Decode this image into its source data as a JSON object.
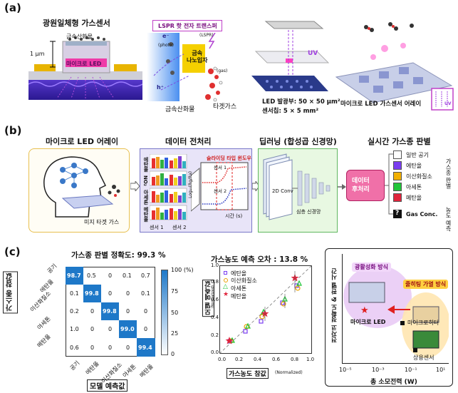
{
  "panel_a": {
    "label": "(a)",
    "title": "광원일체형 가스센서",
    "metal_oxide_top": "금속산화물",
    "thickness": "1 μm",
    "micro_led": "마이크로 LED",
    "lspr_title": "LSPR 핫 전자 트랜스퍼",
    "e_label": "e⁻",
    "h_label": "h⁺",
    "lspr_small": "(LSPR)",
    "photo_small": "(photo)",
    "gas_small": "(gas)",
    "metal_nano": "금속\n나노입자",
    "metal_oxide_bottom": "금속산화물",
    "target_gas": "타겟가스",
    "uv_label": "UV",
    "led_area": "LED 발광부: 50 × 50 μm²",
    "chip_area": "센서칩: 5 × 5 mm²",
    "array_label": "마이크로 LED 가스센서 어레이",
    "uv_small": "UV"
  },
  "panel_b": {
    "label": "(b)",
    "h1": "마이크로 LED 어레이",
    "h2": "데이터 전처리",
    "h3": "딥러닝 (합성곱 신경망)",
    "h4": "실시간 가스종 판별",
    "tiny_gas": "미지 타겟 가스",
    "row_labels": [
      "에탄올",
      "NO₂",
      "아세톤",
      "메탄올"
    ],
    "sensor1": "센서 1",
    "sensor2": "센서 2",
    "sliding": "슬라이딩 타입 윈도우",
    "inset_s1": "센서 1",
    "inset_s2": "센서 2",
    "inset_y": "Log₁₀(Rg/Ra)",
    "inset_x": "시간 (s)",
    "conv": "2D Conv",
    "deep_net": "심층 신경망",
    "post": "데이터\n후처리",
    "classes": [
      {
        "name": "일반 공기",
        "color": "#ffffff"
      },
      {
        "name": "에탄올",
        "color": "#7a3df0"
      },
      {
        "name": "이산화질소",
        "color": "#f2b000"
      },
      {
        "name": "아세톤",
        "color": "#22c53a"
      },
      {
        "name": "메탄올",
        "color": "#e0243c"
      }
    ],
    "gas_conc_mark": "?",
    "gas_conc": "Gas Conc.",
    "side_cls": "가스종 판별",
    "side_conc": "농도 예측"
  },
  "panel_c": {
    "label": "(c)",
    "cm_title": "가스종 판별 정확도: 99.3 %",
    "cm_rows": [
      "공기",
      "에탄올",
      "이산화질소",
      "아세톤",
      "메탄올"
    ],
    "cm_cols": [
      "공기",
      "에탄올",
      "이산화질소",
      "아세톤",
      "메탄올"
    ],
    "cm_values": [
      [
        "98.7",
        "0.5",
        "0",
        "0.1",
        "0.7"
      ],
      [
        "0.1",
        "99.8",
        "0",
        "0",
        "0.1"
      ],
      [
        "0.2",
        "0",
        "99.8",
        "0",
        "0"
      ],
      [
        "1.0",
        "0",
        "0",
        "99.0",
        "0"
      ],
      [
        "0.6",
        "0",
        "0",
        "0",
        "99.4"
      ]
    ],
    "cm_ylabel": "가스종 참값",
    "cm_xlabel": "모델 예측값",
    "cb_ticks": [
      "100 (%)",
      "75",
      "50",
      "25",
      "0"
    ],
    "sc_title": "가스농도 예측 오차 : 13.8 %",
    "sc_ylabel": "모델 예측값",
    "sc_ylabel_small": "(Normalized)",
    "sc_xlabel": "가스농도 참값",
    "sc_xlabel_small": "(Normalized)",
    "sc_ticks": [
      "0.0",
      "0.2",
      "0.4",
      "0.6",
      "0.8",
      "1.0"
    ],
    "sc_legend": [
      "에탄올",
      "이산화질소",
      "아세톤",
      "메탄올"
    ],
    "cmp_badge1": "광활성화 방식",
    "cmp_badge2": "줄히팅 가열 방식",
    "cmp_micro_led": "마이크로 LED",
    "cmp_micro_heater": "마이크로히터",
    "cmp_commercial": "상용센서",
    "cmp_ylabel": "전자코 정확도 & 판별 시간",
    "cmp_xlabel": "총 소모전력 (W)",
    "cmp_xticks": [
      "10⁻⁵",
      "10⁻³",
      "10⁻¹",
      "10¹"
    ]
  }
}
